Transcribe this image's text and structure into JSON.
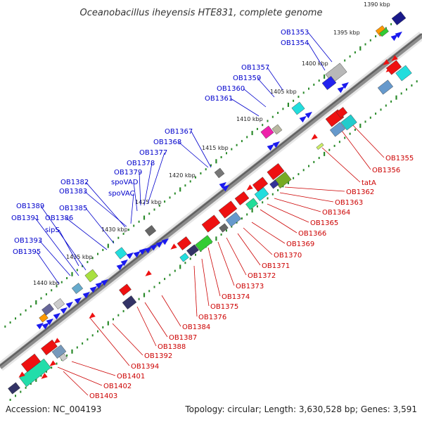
{
  "title": "Oceanobacillus iheyensis HTE831, complete genome",
  "footer": {
    "accession": "Accession: NC_004193",
    "summary": "Topology: circular; Length: 3,630,528 bp; Genes: 3,591"
  },
  "kbp_labels": [
    "1390 kbp",
    "1395 kbp",
    "1400 kbp",
    "1405 kbp",
    "1410 kbp",
    "1415 kbp",
    "1420 kbp",
    "1425 kbp",
    "1430 kbp",
    "1435 kbp",
    "1440 kbp"
  ],
  "blue_labels": [
    "OB1353",
    "OB1354",
    "OB1357",
    "OB1359",
    "OB1360",
    "OB1361",
    "OB1367",
    "OB1368",
    "OB1377",
    "OB1378",
    "OB1379",
    "spoVAD",
    "OB1382",
    "OB1383",
    "spoVAC",
    "OB1385",
    "OB1389",
    "OB1391",
    "OB1386",
    "sipS",
    "OB1393",
    "OB1395"
  ],
  "red_labels": [
    "OB1355",
    "OB1356",
    "tatA",
    "OB1362",
    "OB1363",
    "OB1364",
    "OB1365",
    "OB1366",
    "OB1369",
    "OB1370",
    "OB1371",
    "OB1372",
    "OB1373",
    "OB1374",
    "OB1375",
    "OB1376",
    "OB1384",
    "OB1387",
    "OB1388",
    "OB1392",
    "OB1394",
    "OB1401",
    "OB1402",
    "OB1403"
  ],
  "colors": {
    "forward_label": "#0000cc",
    "reverse_label": "#cc0000",
    "backbone": "#9a9a9a",
    "tick": "#2a8a2a"
  }
}
